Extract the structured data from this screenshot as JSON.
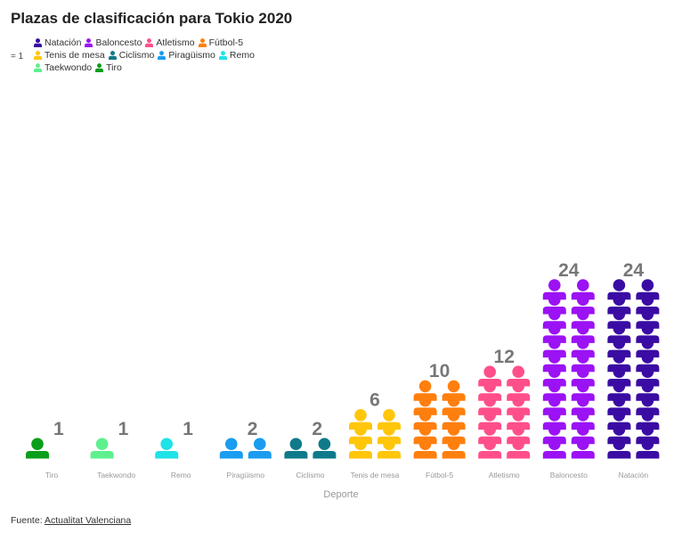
{
  "title": "Plazas de clasificación para Tokio 2020",
  "legend": {
    "unit_note": "= 1",
    "items": [
      {
        "label": "Natación",
        "color": "#3a0ca3"
      },
      {
        "label": "Baloncesto",
        "color": "#9b12f4"
      },
      {
        "label": "Atletismo",
        "color": "#ff4f8b"
      },
      {
        "label": "Fútbol-5",
        "color": "#ff7f0e"
      },
      {
        "label": "Tenis de mesa",
        "color": "#ffc60a"
      },
      {
        "label": "Ciclismo",
        "color": "#0f7a8a"
      },
      {
        "label": "Piragüismo",
        "color": "#1a9cf0"
      },
      {
        "label": "Remo",
        "color": "#1ee3e8"
      },
      {
        "label": "Taekwondo",
        "color": "#5ef08f"
      },
      {
        "label": "Tiro",
        "color": "#0b9e1a"
      }
    ]
  },
  "chart_data": {
    "type": "pictogram",
    "title": "Plazas de clasificación para Tokio 2020",
    "xlabel": "Deporte",
    "ylabel": "",
    "unit": "1 plaza por icono",
    "categories": [
      "Tiro",
      "Taekwondo",
      "Remo",
      "Piragüismo",
      "Ciclismo",
      "Tenis de mesa",
      "Fútbol-5",
      "Atletismo",
      "Baloncesto",
      "Natación"
    ],
    "values": [
      1,
      1,
      1,
      2,
      2,
      6,
      10,
      12,
      24,
      24
    ],
    "value_labels": [
      "1",
      "1",
      "1",
      "2",
      "2",
      "6",
      "10",
      "12",
      "24",
      "24"
    ],
    "colors": [
      "#0b9e1a",
      "#5ef08f",
      "#1ee3e8",
      "#1a9cf0",
      "#0f7a8a",
      "#ffc60a",
      "#ff7f0e",
      "#ff4f8b",
      "#9b12f4",
      "#3a0ca3"
    ],
    "icons_per_row": 2
  },
  "footer": {
    "source_prefix": "Fuente: ",
    "source_name": "Actualitat Valenciana"
  }
}
